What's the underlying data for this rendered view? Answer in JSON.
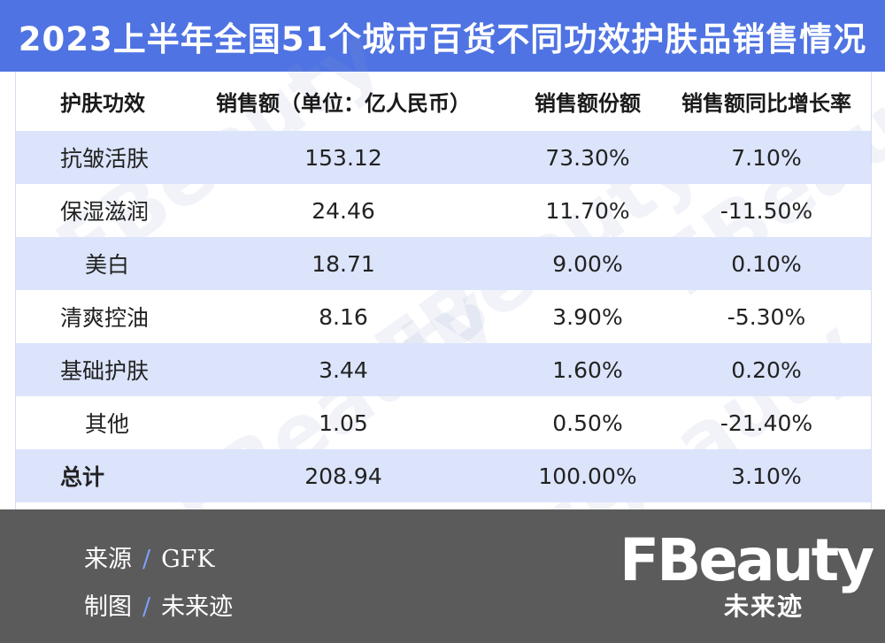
{
  "title": "2023上半年全国51个城市百货不同功效护肤品销售情况",
  "chart_data": {
    "type": "table",
    "columns": [
      "护肤功效",
      "销售额（单位：亿人民币）",
      "销售额份额",
      "销售额同比增长率"
    ],
    "rows": [
      [
        "抗皱活肤",
        "153.12",
        "73.30%",
        "7.10%"
      ],
      [
        "保湿滋润",
        "24.46",
        "11.70%",
        "-11.50%"
      ],
      [
        "美白",
        "18.71",
        "9.00%",
        "0.10%"
      ],
      [
        "清爽控油",
        "8.16",
        "3.90%",
        "-5.30%"
      ],
      [
        "基础护肤",
        "3.44",
        "1.60%",
        "0.20%"
      ],
      [
        "其他",
        "1.05",
        "0.50%",
        "-21.40%"
      ],
      [
        "总计",
        "208.94",
        "100.00%",
        "3.10%"
      ]
    ]
  },
  "footer": {
    "source_label": "来源",
    "source_value": "GFK",
    "chart_label": "制图",
    "chart_value": "未来迹",
    "separator": "/",
    "logo_text": "FBeauty",
    "logo_cn": "未来迹"
  },
  "colors": {
    "title_bg": "#4f73e2",
    "band": "#dbe4fb",
    "footer_bg": "#5b5b5b",
    "accent": "#7fa0ff"
  }
}
